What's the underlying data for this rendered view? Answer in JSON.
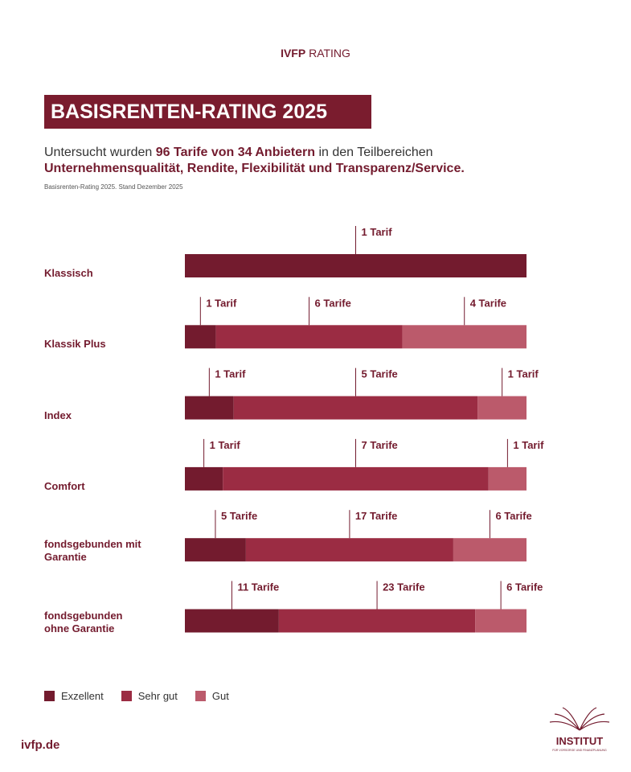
{
  "page": {
    "brand_bold": "IVFP",
    "brand": "RATING",
    "intro_1": "Untersucht wurden",
    "intro_bold": "96 Tarife von 34 Anbietern",
    "intro_2": "in den Teilbereichen",
    "intro_line2": "Unternehmensqualität, Rendite, Flexibilität und Transparenz/Service.",
    "source": "Basisrenten-Rating 2025. Stand Dezember 2025",
    "footer_url": "ivfp.de",
    "logo_name": "INSTITUT",
    "logo_sub": "FÜR VORSORGE UND FINANZPLANUNG"
  },
  "chart_data": {
    "type": "stacked-bar-100",
    "title": "BASISRENTEN-RATING 2025",
    "categories": [
      "Klassisch",
      "Klassik Plus",
      "Index",
      "Comfort",
      "fondsgebunden mit Garantie",
      "fondsgebunden ohne Garantie"
    ],
    "series": [
      {
        "name": "Exzellent",
        "color": "#731b2e",
        "values": [
          1,
          1,
          1,
          1,
          5,
          11
        ],
        "value_labels": [
          "1 Tarif",
          "1 Tarif",
          "1 Tarif",
          "1 Tarif",
          "5 Tarife",
          "11 Tarife"
        ]
      },
      {
        "name": "Sehr gut",
        "color": "#9b2c43",
        "values": [
          0,
          6,
          5,
          7,
          17,
          23
        ],
        "value_labels": [
          null,
          "6 Tarife",
          "5 Tarife",
          "7 Tarife",
          "17 Tarife",
          "23 Tarife"
        ]
      },
      {
        "name": "Gut",
        "color": "#bb5a6b",
        "values": [
          0,
          4,
          1,
          1,
          6,
          6
        ],
        "value_labels": [
          null,
          "4 Tarife",
          "1 Tarif",
          "1 Tarif",
          "6 Tarife",
          "6 Tarife"
        ]
      }
    ]
  }
}
